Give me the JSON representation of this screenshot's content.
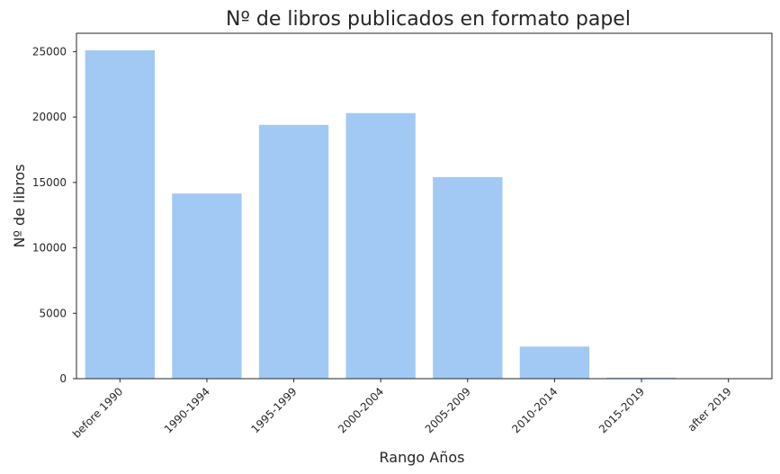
{
  "chart_data": {
    "type": "bar",
    "title": "Nº de libros publicados en formato papel",
    "xlabel": "Rango Años",
    "ylabel": "Nº de libros",
    "categories": [
      "before 1990",
      "1990-1994",
      "1995-1999",
      "2000-2004",
      "2005-2009",
      "2010-2014",
      "2015-2019",
      "after 2019"
    ],
    "values": [
      25100,
      14150,
      19400,
      20300,
      15400,
      2450,
      80,
      5
    ],
    "yticks": [
      0,
      5000,
      10000,
      15000,
      20000,
      25000
    ],
    "ylim": [
      0,
      26400
    ],
    "grid": false,
    "legend": "none",
    "bar_color": "#a1c9f4"
  }
}
